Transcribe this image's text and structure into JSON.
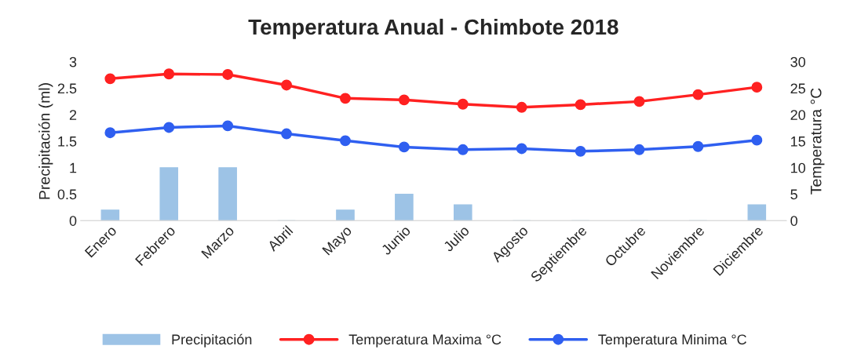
{
  "chart_data": {
    "type": "bar",
    "title": "Temperatura Anual - Chimbote 2018",
    "categories": [
      "Enero",
      "Febrero",
      "Marzo",
      "Abril",
      "Mayo",
      "Junio",
      "Julio",
      "Agosto",
      "Septiembre",
      "Octubre",
      "Noviembre",
      "Diciembre"
    ],
    "series": [
      {
        "name": "Precipitación",
        "color": "#9dc3e6",
        "values": [
          0.2,
          1,
          1,
          0,
          0.2,
          0.5,
          0.3,
          0,
          0,
          0,
          0,
          0.3
        ]
      },
      {
        "name": "Temperatura Maxima °C",
        "type": "line",
        "axis": "y2",
        "color": "#ff2121",
        "values": [
          26.8,
          27.7,
          27.6,
          25.6,
          23.1,
          22.8,
          22.0,
          21.4,
          21.9,
          22.5,
          23.8,
          25.2
        ]
      },
      {
        "name": "Temperatura Minima °C",
        "type": "line",
        "axis": "y2",
        "color": "#2f5ff0",
        "values": [
          16.6,
          17.6,
          17.9,
          16.4,
          15.1,
          13.9,
          13.4,
          13.6,
          13.1,
          13.4,
          14.0,
          15.2
        ]
      }
    ],
    "ylabel": "Precipitación (ml)",
    "y2label": "Temperatura °C",
    "ylim": [
      0,
      3
    ],
    "yticks": [
      0,
      0.5,
      1,
      1.5,
      2,
      2.5,
      3
    ],
    "y2lim": [
      0,
      30
    ],
    "y2ticks": [
      0,
      5,
      10,
      15,
      20,
      25,
      30
    ],
    "grid": false,
    "legend": "bottom",
    "marker": "circle",
    "line_style": "solid"
  }
}
